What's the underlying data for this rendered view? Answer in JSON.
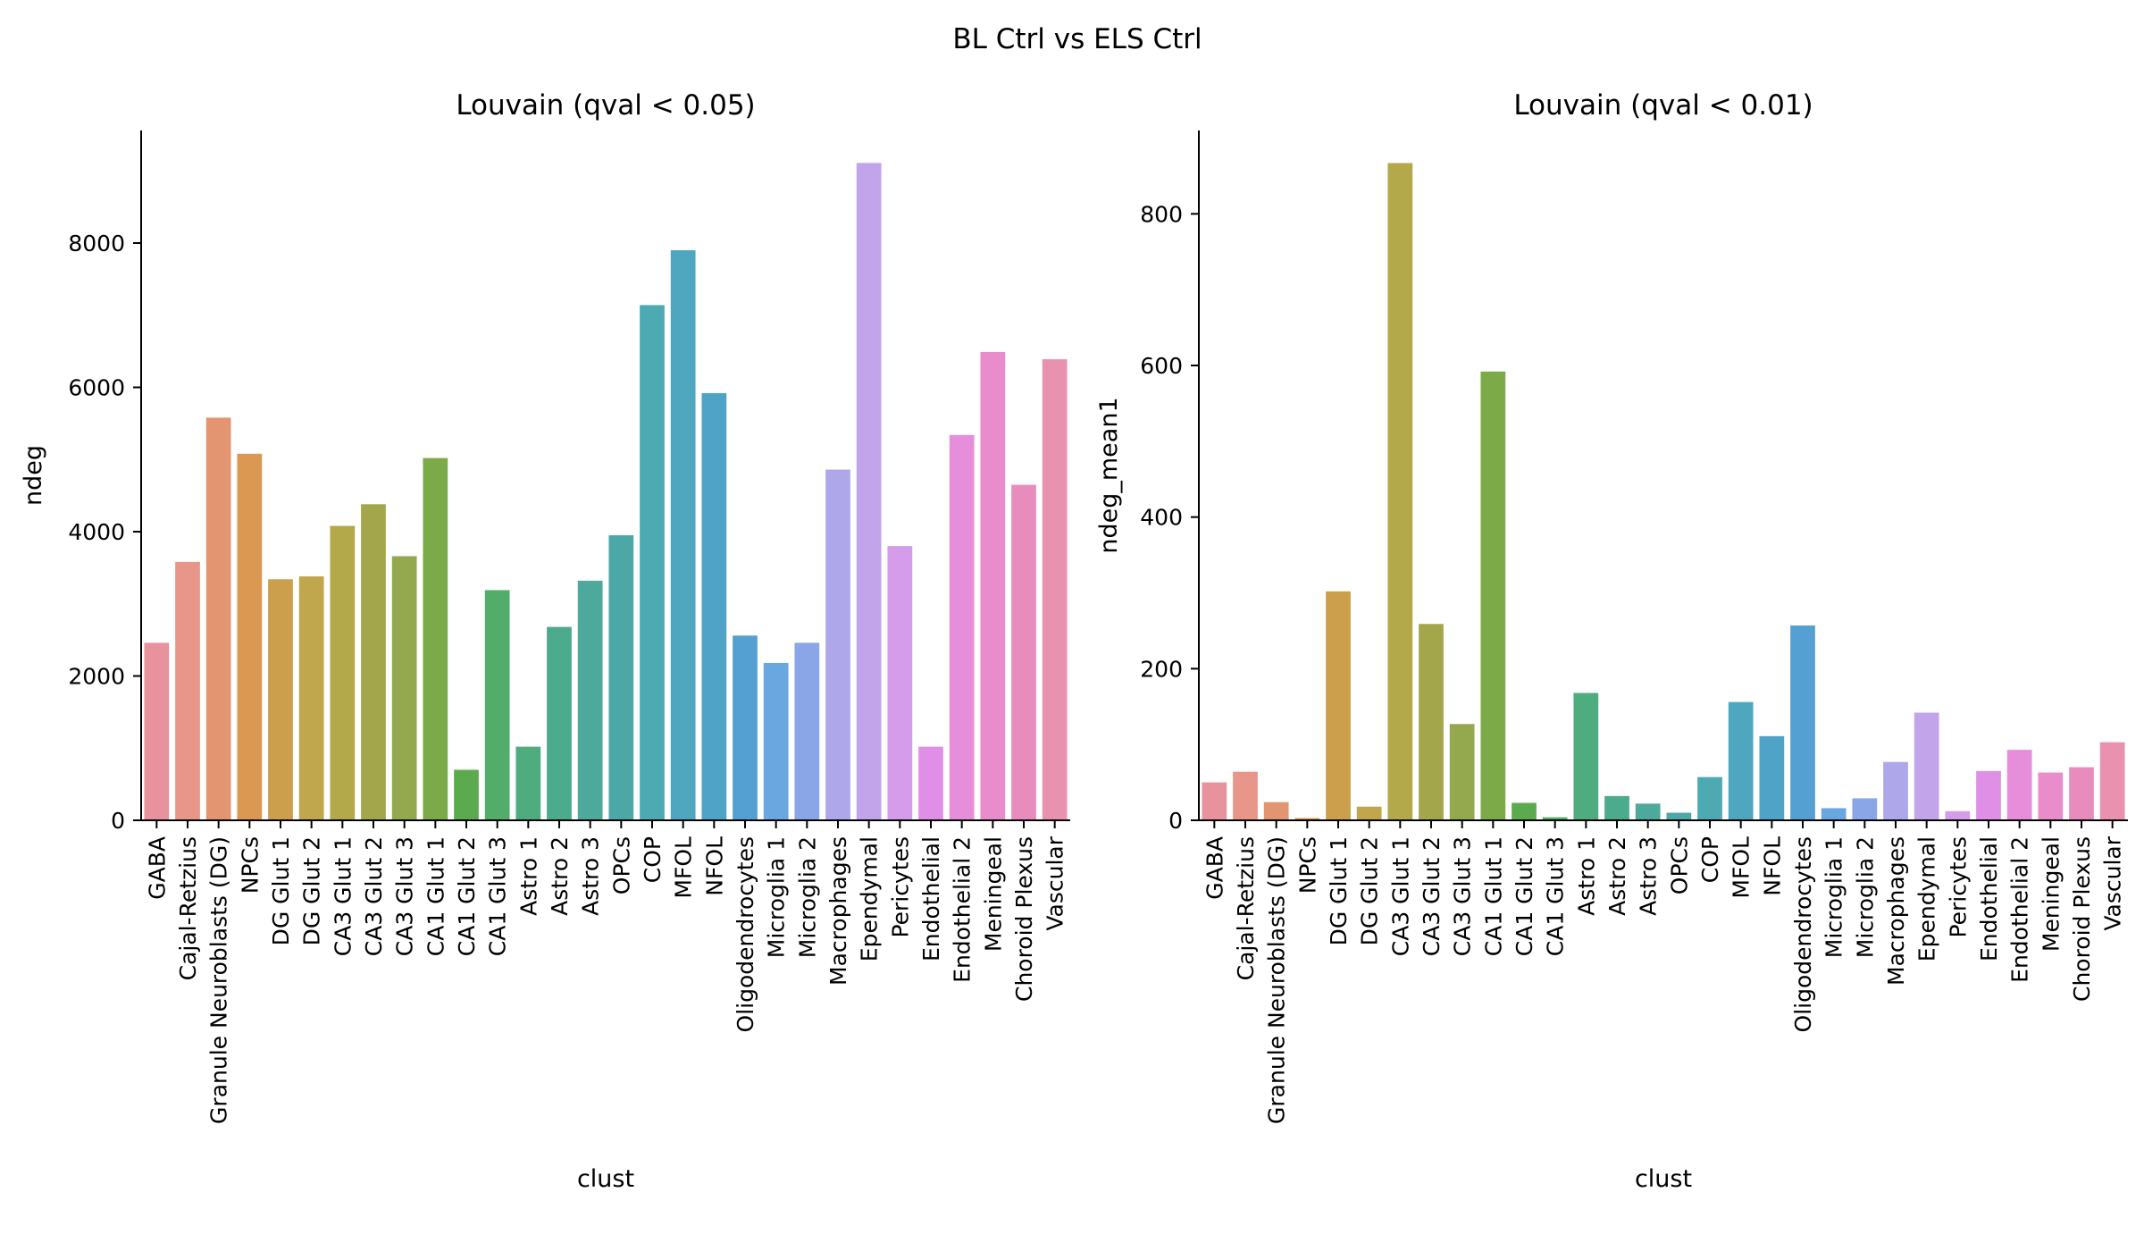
{
  "figure": {
    "suptitle": "BL Ctrl vs ELS Ctrl"
  },
  "chart_data": [
    {
      "type": "bar",
      "title": "Louvain (qval < 0.05)",
      "xlabel": "clust",
      "ylabel": "ndeg",
      "ylim": [
        0,
        9560
      ],
      "yticks": [
        0,
        2000,
        4000,
        6000,
        8000
      ],
      "grid": false,
      "legend": "none",
      "categories": [
        "GABA",
        "Cajal-Retzius",
        "Granule Neuroblasts (DG)",
        "NPCs",
        "DG Glut 1",
        "DG Glut 2",
        "CA3 Glut 1",
        "CA3 Glut 2",
        "CA3 Glut 3",
        "CA1 Glut 1",
        "CA1 Glut 2",
        "CA1 Glut 3",
        "Astro 1",
        "Astro 2",
        "Astro 3",
        "OPCs",
        "COP",
        "MFOL",
        "NFOL",
        "Oligodendrocytes",
        "Microglia 1",
        "Microglia 2",
        "Macrophages",
        "Ependymal",
        "Pericytes",
        "Endothelial",
        "Endothelial 2",
        "Meningeal",
        "Choroid Plexus",
        "Vascular"
      ],
      "values": [
        2460,
        3580,
        5580,
        5080,
        3340,
        3380,
        4080,
        4380,
        3660,
        5020,
        700,
        3190,
        1020,
        2680,
        3320,
        3950,
        7140,
        7900,
        5920,
        2560,
        2180,
        2460,
        4860,
        9110,
        3800,
        1020,
        5340,
        6490,
        4650,
        6390
      ]
    },
    {
      "type": "bar",
      "title": "Louvain (qval < 0.01)",
      "xlabel": "clust",
      "ylabel": "ndeg_mean1",
      "ylim": [
        0,
        910
      ],
      "yticks": [
        0,
        200,
        400,
        600,
        800
      ],
      "grid": false,
      "legend": "none",
      "categories": [
        "GABA",
        "Cajal-Retzius",
        "Granule Neuroblasts (DG)",
        "NPCs",
        "DG Glut 1",
        "DG Glut 2",
        "CA3 Glut 1",
        "CA3 Glut 2",
        "CA3 Glut 3",
        "CA1 Glut 1",
        "CA1 Glut 2",
        "CA1 Glut 3",
        "Astro 1",
        "Astro 2",
        "Astro 3",
        "OPCs",
        "COP",
        "MFOL",
        "NFOL",
        "Oligodendrocytes",
        "Microglia 1",
        "Microglia 2",
        "Macrophages",
        "Ependymal",
        "Pericytes",
        "Endothelial",
        "Endothelial 2",
        "Meningeal",
        "Choroid Plexus",
        "Vascular"
      ],
      "values": [
        50,
        64,
        24,
        3,
        302,
        18,
        867,
        259,
        127,
        592,
        23,
        4,
        168,
        32,
        22,
        10,
        57,
        156,
        111,
        257,
        16,
        29,
        77,
        142,
        12,
        65,
        93,
        63,
        70,
        103
      ]
    }
  ],
  "colors": [
    "#e8929d",
    "#e9968a",
    "#e29570",
    "#da9853",
    "#cc9f4d",
    "#c0a64d",
    "#b3a84a",
    "#a3a64a",
    "#94a84d",
    "#7caa48",
    "#5bab4e",
    "#52ad6a",
    "#4eac7f",
    "#4caa8d",
    "#4ca99b",
    "#4ba8a6",
    "#4daab3",
    "#4fa7bf",
    "#4ea3c6",
    "#55a0d2",
    "#6aa6e0",
    "#8aa6e6",
    "#aea8ea",
    "#c2a4ea",
    "#d49cea",
    "#e08fe6",
    "#e68ed9",
    "#e98ccc",
    "#e88cbe",
    "#e892b0"
  ]
}
